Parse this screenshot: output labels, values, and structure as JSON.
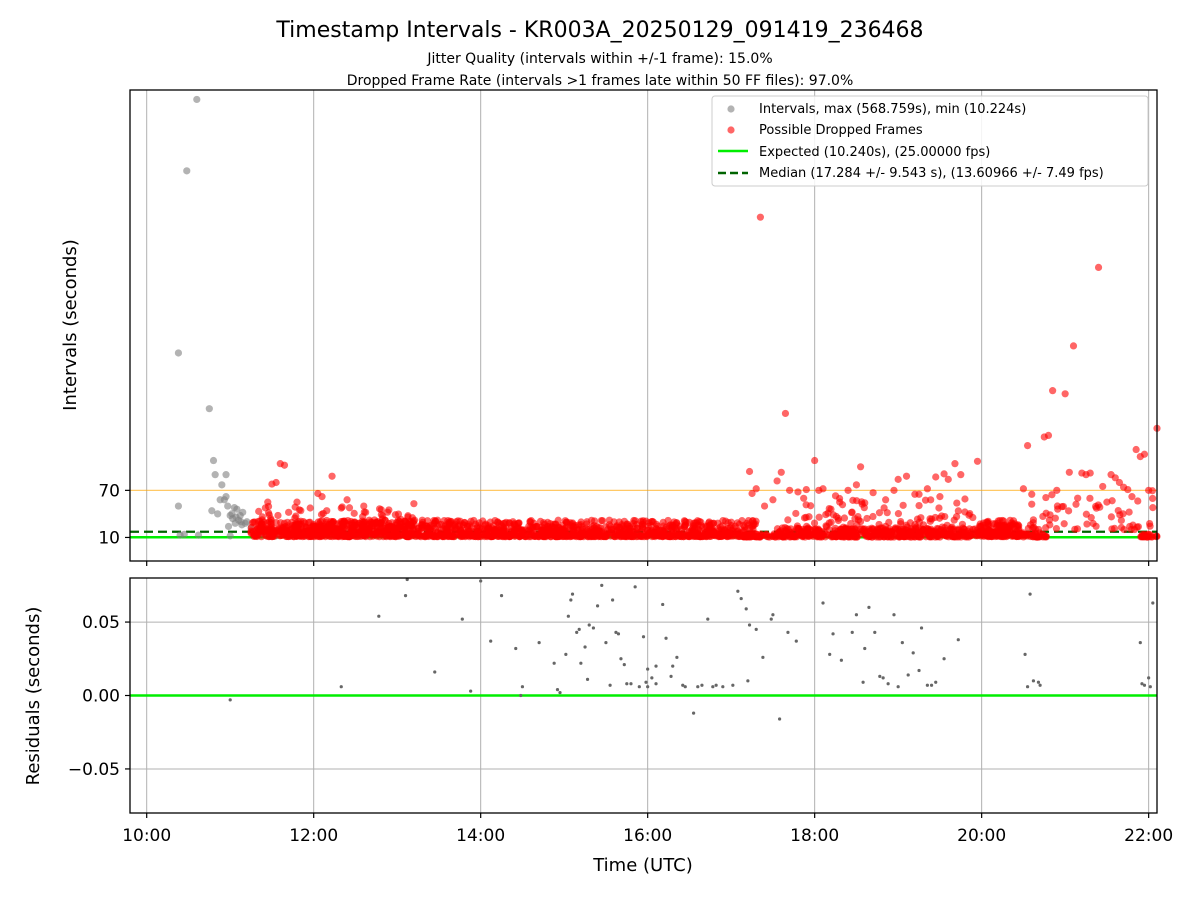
{
  "figure": {
    "title": "Timestamp Intervals - KR003A_20250129_091419_236468",
    "subtitle_1": "Jitter Quality (intervals within +/-1 frame): 15.0%",
    "subtitle_2": "Dropped Frame Rate (intervals >1 frames late within 50 FF files): 97.0%"
  },
  "colors": {
    "intervals": "#808080",
    "dropped": "#ff0000",
    "expected": "#00ee00",
    "median": "#006400",
    "threshold": "#ffa500",
    "grid": "#b0b0b0"
  },
  "chart_data": [
    {
      "type": "scatter",
      "ylabel": "Intervals (seconds)",
      "xlim": [
        9.8,
        22.1
      ],
      "ylim": [
        -20,
        580
      ],
      "y_ticks": [
        10,
        70
      ],
      "y_tick_labels": [
        "10",
        "70"
      ],
      "x_ticks": [
        10,
        12,
        14,
        16,
        18,
        20,
        22
      ],
      "grid": "vertical",
      "legend_position": "upper right",
      "legend": [
        {
          "label": "Intervals, max (568.759s), min (10.224s)",
          "kind": "marker",
          "color": "#808080"
        },
        {
          "label": "Possible Dropped Frames",
          "kind": "marker",
          "color": "#ff0000"
        },
        {
          "label": "Expected (10.240s), (25.00000 fps)",
          "kind": "line",
          "color": "#00ee00"
        },
        {
          "label": "Median (17.284 +/- 9.543 s), (13.60966 +/- 7.49 fps)",
          "kind": "dash",
          "color": "#006400"
        }
      ],
      "reference_lines": {
        "expected": 10.24,
        "median": 17.284,
        "threshold": 70
      },
      "series": [
        {
          "name": "Intervals",
          "kind": "gray",
          "x": [
            10.38,
            10.48,
            10.6,
            10.38,
            10.75,
            10.8,
            10.82,
            10.95,
            10.4,
            10.85,
            10.9,
            10.93,
            10.95,
            11.0,
            11.05,
            11.08,
            10.88,
            10.97,
            11.02,
            11.1,
            11.12,
            11.15,
            11.18,
            10.78,
            11.03,
            11.07,
            11.13,
            10.45,
            10.62,
            11.0,
            10.98,
            11.06,
            11.14,
            11.2,
            11.25,
            11.4,
            11.55,
            11.7,
            11.9,
            12.1,
            12.3,
            12.6,
            13.0
          ],
          "y": [
            50,
            477,
            568,
            245,
            174,
            108,
            90,
            90,
            13,
            40,
            77,
            58,
            62,
            38,
            48,
            46,
            58,
            50,
            40,
            32,
            38,
            42,
            28,
            44,
            34,
            36,
            30,
            14,
            13,
            12,
            24,
            28,
            26,
            30,
            22,
            14,
            12,
            13,
            12,
            14,
            13,
            12,
            12
          ]
        },
        {
          "name": "Possible Dropped Frames",
          "kind": "red",
          "x": [
            17.35,
            21.4,
            21.1,
            20.85,
            21.0,
            17.65,
            22.1,
            21.95,
            20.55,
            20.8,
            20.75,
            21.85,
            21.9,
            21.3,
            21.55,
            21.6,
            21.05,
            21.2,
            21.25,
            21.7,
            21.75,
            21.65,
            19.95,
            18.55,
            18.0,
            19.68,
            19.75,
            19.55,
            19.45,
            19.1,
            11.6,
            11.65,
            11.55,
            11.5,
            12.22,
            17.22,
            17.3,
            17.55,
            17.6,
            17.7,
            17.8,
            17.9,
            18.1,
            18.25,
            18.4,
            18.5,
            18.7,
            18.85,
            19.0,
            19.25,
            19.35,
            19.6,
            19.8,
            12.1,
            12.4,
            12.05,
            11.45,
            11.7,
            11.8,
            12.6,
            12.9,
            13.2,
            17.25,
            17.4,
            17.5,
            18.05,
            18.3,
            18.6,
            18.95,
            19.2,
            19.5,
            20.5,
            20.6,
            20.9,
            21.15,
            21.45,
            21.5,
            21.8,
            22.0,
            22.05
          ],
          "y": [
            418,
            354,
            254,
            197,
            193,
            168,
            149,
            116,
            127,
            140,
            138,
            122,
            113,
            92,
            90,
            86,
            93,
            92,
            90,
            74,
            71,
            80,
            107,
            100,
            108,
            104,
            90,
            91,
            87,
            88,
            104,
            102,
            80,
            78,
            88,
            94,
            72,
            82,
            93,
            70,
            68,
            71,
            72,
            63,
            70,
            77,
            67,
            58,
            84,
            65,
            72,
            84,
            59,
            62,
            58,
            66,
            55,
            42,
            55,
            50,
            45,
            53,
            66,
            50,
            58,
            70,
            55,
            54,
            70,
            65,
            62,
            72,
            65,
            70,
            60,
            75,
            55,
            62,
            70,
            48
          ]
        }
      ],
      "bands": [
        {
          "x_start": 11.25,
          "x_end": 17.3,
          "y_low": 11,
          "y_high": 32,
          "count": 1500
        },
        {
          "x_start": 11.3,
          "x_end": 13.2,
          "y_low": 20,
          "y_high": 50,
          "count": 120
        },
        {
          "x_start": 17.15,
          "x_end": 17.55,
          "y_low": 10.5,
          "y_high": 15,
          "count": 40
        },
        {
          "x_start": 17.55,
          "x_end": 19.95,
          "y_low": 10.5,
          "y_high": 22,
          "count": 420
        },
        {
          "x_start": 17.6,
          "x_end": 19.9,
          "y_low": 20,
          "y_high": 60,
          "count": 120
        },
        {
          "x_start": 19.95,
          "x_end": 20.45,
          "y_low": 11,
          "y_high": 32,
          "count": 160
        },
        {
          "x_start": 20.45,
          "x_end": 20.8,
          "y_low": 10.5,
          "y_high": 16,
          "count": 40
        },
        {
          "x_start": 20.5,
          "x_end": 22.05,
          "y_low": 20,
          "y_high": 70,
          "count": 60
        },
        {
          "x_start": 21.9,
          "x_end": 22.1,
          "y_low": 10.5,
          "y_high": 14,
          "count": 25
        }
      ]
    },
    {
      "type": "scatter",
      "xlabel": "Time (UTC)",
      "ylabel": "Residuals (seconds)",
      "xlim": [
        9.8,
        22.1
      ],
      "ylim": [
        -0.08,
        0.08
      ],
      "y_ticks": [
        -0.05,
        0.0,
        0.05
      ],
      "y_tick_labels": [
        "−0.05",
        "0.00",
        "0.05"
      ],
      "x_ticks": [
        10,
        12,
        14,
        16,
        18,
        20,
        22
      ],
      "x_tick_labels": [
        "10:00",
        "12:00",
        "14:00",
        "16:00",
        "18:00",
        "20:00",
        "22:00"
      ],
      "grid": "both",
      "reference_line": 0.0,
      "series": [
        {
          "name": "Residuals",
          "x": [
            11.0,
            12.33,
            12.78,
            13.1,
            13.12,
            13.45,
            13.78,
            13.88,
            14.0,
            14.12,
            14.25,
            14.42,
            14.5,
            14.7,
            14.88,
            14.92,
            14.95,
            15.02,
            15.05,
            15.08,
            15.1,
            15.15,
            15.18,
            15.2,
            15.25,
            15.3,
            15.35,
            15.4,
            15.45,
            15.5,
            15.55,
            15.58,
            15.62,
            15.68,
            15.72,
            15.8,
            15.85,
            15.9,
            15.95,
            16.0,
            16.05,
            16.1,
            16.18,
            16.22,
            16.28,
            16.35,
            16.45,
            16.55,
            16.65,
            16.72,
            16.78,
            16.82,
            16.9,
            17.02,
            17.08,
            17.12,
            17.18,
            17.22,
            17.3,
            17.38,
            17.5,
            17.58,
            17.68,
            17.78,
            18.1,
            18.18,
            18.22,
            18.32,
            18.45,
            18.5,
            18.58,
            18.65,
            18.72,
            18.78,
            18.88,
            18.95,
            19.05,
            19.12,
            19.18,
            19.28,
            19.35,
            19.45,
            19.55,
            19.72,
            20.52,
            20.58,
            20.62,
            20.68,
            21.9,
            21.95,
            22.0,
            22.05,
            16.42,
            16.6,
            17.48,
            14.48,
            15.65,
            16.0,
            16.3,
            17.2,
            18.6,
            19.0,
            19.4,
            15.28,
            15.75,
            15.98,
            16.1,
            18.82,
            19.25,
            20.55,
            20.7,
            21.92,
            22.02
          ],
          "y": [
            -0.003,
            0.006,
            0.054,
            0.068,
            0.079,
            0.016,
            0.052,
            0.003,
            0.078,
            0.037,
            0.068,
            0.032,
            0.006,
            0.036,
            0.022,
            0.004,
            0.002,
            0.028,
            0.054,
            0.065,
            0.069,
            0.043,
            0.045,
            0.022,
            0.033,
            0.048,
            0.046,
            0.061,
            0.075,
            0.036,
            0.007,
            0.065,
            0.043,
            0.025,
            0.021,
            0.008,
            0.074,
            0.006,
            0.04,
            0.018,
            0.012,
            0.02,
            0.062,
            0.039,
            0.013,
            0.026,
            0.006,
            -0.012,
            0.007,
            0.052,
            0.006,
            0.007,
            0.006,
            0.007,
            0.071,
            0.066,
            0.059,
            0.048,
            0.045,
            0.026,
            0.055,
            -0.016,
            0.043,
            0.037,
            0.063,
            0.028,
            0.042,
            0.024,
            0.043,
            0.055,
            0.009,
            0.06,
            0.043,
            0.013,
            0.008,
            0.055,
            0.036,
            0.014,
            0.029,
            0.046,
            0.007,
            0.009,
            0.025,
            0.038,
            0.028,
            0.069,
            0.01,
            0.009,
            0.036,
            0.007,
            0.012,
            0.063,
            0.007,
            0.006,
            0.052,
            0.0,
            0.042,
            0.006,
            0.02,
            0.01,
            0.032,
            0.006,
            0.007,
            0.011,
            0.008,
            0.009,
            0.008,
            0.012,
            0.017,
            0.006,
            0.007,
            0.008,
            0.006
          ]
        }
      ]
    }
  ]
}
